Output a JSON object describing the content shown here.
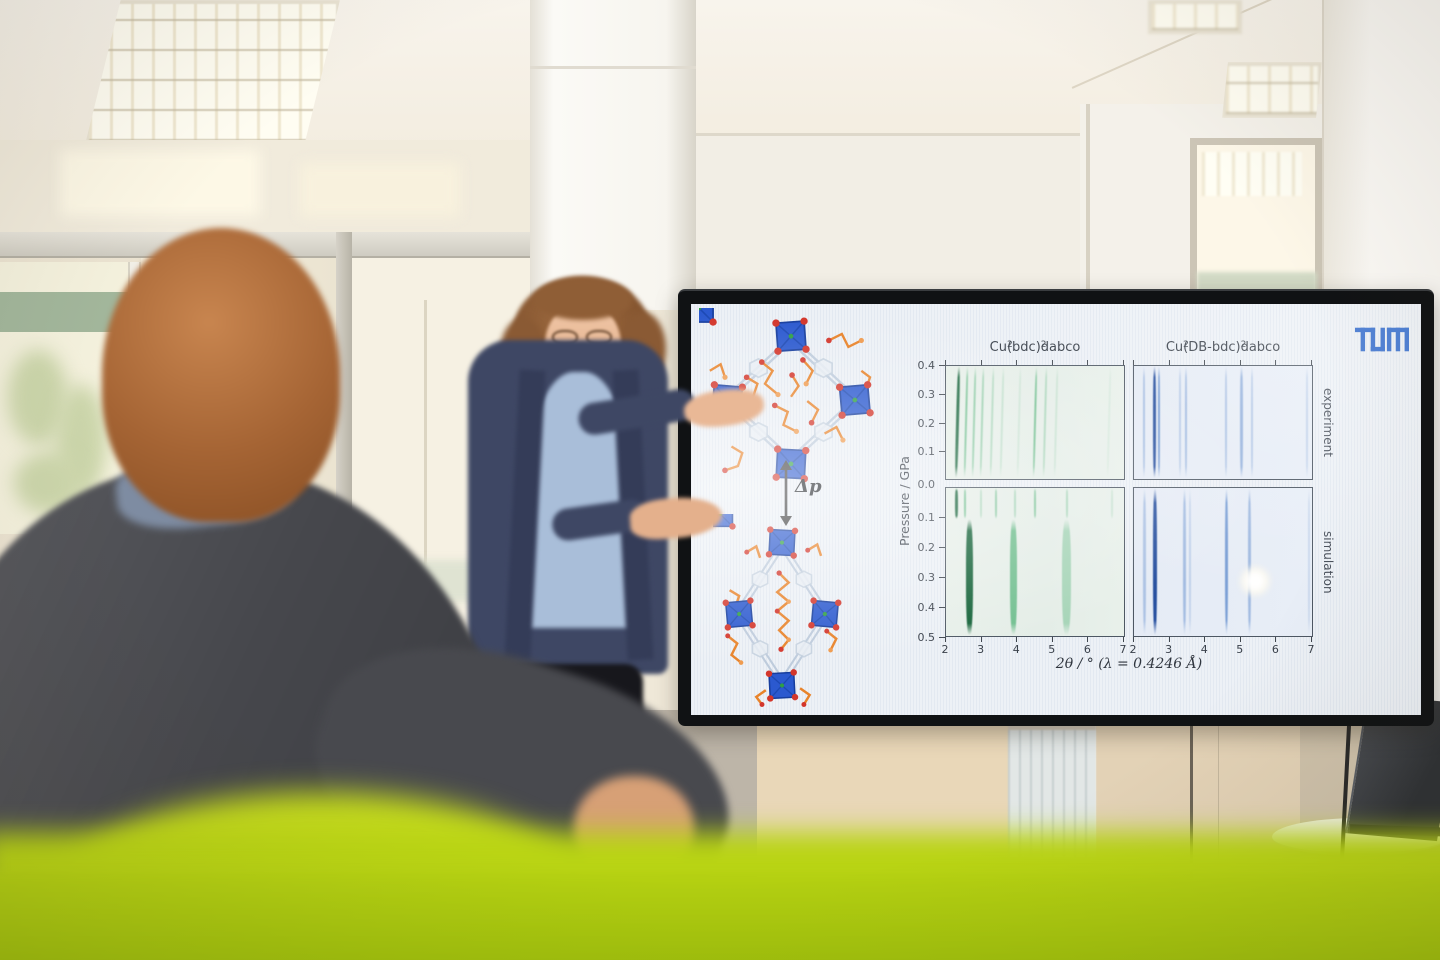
{
  "scene": {
    "setting_colors": {
      "couch_green": "#b5d112",
      "couch_olive": "#77882b",
      "wall_beige": "#e9e1d0",
      "slide_background": "#edf1f6",
      "tum_blue": "#1f5ec9",
      "cardigan_navy": "#3e4764",
      "shirt_light_blue": "#a9bed9"
    }
  },
  "slide": {
    "tum_logo": "TUM",
    "delta_p_label": "Δp"
  },
  "chart_data": {
    "type": "heatmap",
    "description_layout": "2x2 grid of pressure-vs-2theta diffraction heatmaps",
    "x_axis": {
      "label": "2θ  / ° (λ = 0.4246 Å)",
      "range": [
        2,
        7
      ],
      "ticks": [
        2,
        3,
        4,
        5,
        6,
        7
      ]
    },
    "y_axis": {
      "label": "Pressure / GPa",
      "top_row_ticks": [
        0.4,
        0.3,
        0.2,
        0.1
      ],
      "shared_tick": "0.0",
      "bottom_row_ticks": [
        0.1,
        0.2,
        0.3,
        0.4,
        0.5
      ],
      "top_row_range": [
        0.4,
        0.0
      ],
      "bottom_row_range": [
        0.0,
        0.5
      ]
    },
    "columns": [
      {
        "title": "Cu_2(bdc)_2dabco",
        "tint": "green"
      },
      {
        "title": "Cu_2(DB-bdc)_2dabco",
        "tint": "blue"
      }
    ],
    "rows": [
      {
        "label": "experiment"
      },
      {
        "label": "simulation"
      }
    ],
    "colors": {
      "green_hi": "#0a5c30",
      "green_lo": "#27a157",
      "blue_hi": "#123f96",
      "blue_lo": "#4377c4"
    },
    "panels": [
      {
        "row": 0,
        "col": 0,
        "tint": "green",
        "skew": -1.5,
        "lines": [
          {
            "t": 2.32,
            "i": 0.92,
            "w": 3
          },
          {
            "t": 2.56,
            "i": 0.55,
            "w": 2
          },
          {
            "t": 2.78,
            "i": 0.45,
            "w": 2
          },
          {
            "t": 3.02,
            "i": 0.38,
            "w": 2
          },
          {
            "t": 3.3,
            "i": 0.28,
            "w": 2
          },
          {
            "t": 3.58,
            "i": 0.18,
            "w": 2
          },
          {
            "t": 4.05,
            "i": 0.12,
            "w": 2
          },
          {
            "t": 4.52,
            "i": 0.6,
            "w": 2.5
          },
          {
            "t": 4.8,
            "i": 0.3,
            "w": 2
          },
          {
            "t": 5.12,
            "i": 0.15,
            "w": 2
          },
          {
            "t": 6.6,
            "i": 0.08,
            "w": 2
          }
        ]
      },
      {
        "row": 0,
        "col": 1,
        "tint": "blue",
        "skew": 0,
        "lines": [
          {
            "t": 2.28,
            "i": 0.4,
            "w": 2
          },
          {
            "t": 2.58,
            "i": 0.92,
            "w": 3
          },
          {
            "t": 2.7,
            "i": 0.7,
            "w": 2
          },
          {
            "t": 3.3,
            "i": 0.28,
            "w": 2
          },
          {
            "t": 3.47,
            "i": 0.42,
            "w": 2
          },
          {
            "t": 4.6,
            "i": 0.35,
            "w": 2
          },
          {
            "t": 5.04,
            "i": 0.48,
            "w": 2.5
          },
          {
            "t": 5.32,
            "i": 0.3,
            "w": 2
          },
          {
            "t": 6.9,
            "i": 0.22,
            "w": 2
          }
        ]
      },
      {
        "row": 1,
        "col": 0,
        "tint": "green",
        "skew": 0,
        "lines": [
          {
            "t": 2.3,
            "i": 0.9,
            "w": 3,
            "p": [
              0,
              0.105
            ]
          },
          {
            "t": 2.53,
            "i": 0.55,
            "w": 2,
            "p": [
              0,
              0.105
            ]
          },
          {
            "t": 3.0,
            "i": 0.25,
            "w": 2,
            "p": [
              0,
              0.105
            ]
          },
          {
            "t": 3.4,
            "i": 0.45,
            "w": 2,
            "p": [
              0,
              0.105
            ]
          },
          {
            "t": 3.95,
            "i": 0.3,
            "w": 2,
            "p": [
              0,
              0.105
            ]
          },
          {
            "t": 4.52,
            "i": 0.5,
            "w": 2,
            "p": [
              0,
              0.105
            ]
          },
          {
            "t": 5.42,
            "i": 0.3,
            "w": 2,
            "p": [
              0,
              0.105
            ]
          },
          {
            "t": 6.7,
            "i": 0.15,
            "w": 2,
            "p": [
              0,
              0.105
            ]
          },
          {
            "t": 2.66,
            "i": 0.95,
            "w": 7,
            "p": [
              0.105,
              0.5
            ]
          },
          {
            "t": 3.9,
            "i": 0.6,
            "w": 7,
            "p": [
              0.105,
              0.5
            ]
          },
          {
            "t": 5.4,
            "i": 0.32,
            "w": 9,
            "p": [
              0.105,
              0.5
            ]
          }
        ]
      },
      {
        "row": 1,
        "col": 1,
        "tint": "blue",
        "skew": 0,
        "lines": [
          {
            "t": 2.3,
            "i": 0.35,
            "w": 3
          },
          {
            "t": 2.6,
            "i": 0.9,
            "w": 4
          },
          {
            "t": 3.42,
            "i": 0.4,
            "w": 3
          },
          {
            "t": 3.58,
            "i": 0.22,
            "w": 2
          },
          {
            "t": 4.62,
            "i": 0.65,
            "w": 3.5
          },
          {
            "t": 5.25,
            "i": 0.42,
            "w": 3
          },
          {
            "t": 6.95,
            "i": 0.18,
            "w": 2
          }
        ]
      }
    ]
  }
}
